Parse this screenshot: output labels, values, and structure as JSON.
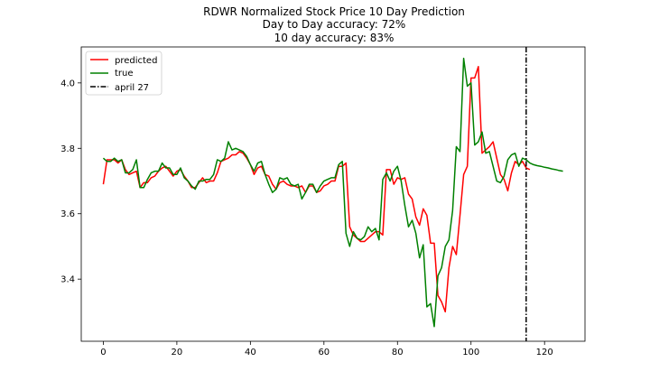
{
  "chart_data": {
    "type": "line",
    "title_lines": [
      "RDWR Normalized Stock Price 10 Day Prediction",
      "Day to Day accuracy: 72%",
      "10 day accuracy: 83%"
    ],
    "xlabel": "",
    "ylabel": "",
    "xlim": [
      -6,
      131
    ],
    "ylim": [
      3.21,
      4.11
    ],
    "xticks": [
      0,
      20,
      40,
      60,
      80,
      100,
      120
    ],
    "yticks": [
      3.4,
      3.6,
      3.8,
      4.0
    ],
    "ytick_labels": [
      "3.4",
      "3.6",
      "3.8",
      "4.0"
    ],
    "grid": false,
    "legend_position": "top-left",
    "vline": {
      "x": 115,
      "label": "april 27",
      "color": "#000000",
      "style": "dash-dot"
    },
    "series": [
      {
        "name": "predicted",
        "color": "#ff0000",
        "x_start": 0,
        "values": [
          3.69,
          3.765,
          3.765,
          3.765,
          3.755,
          3.765,
          3.735,
          3.72,
          3.725,
          3.73,
          3.68,
          3.695,
          3.695,
          3.71,
          3.715,
          3.73,
          3.74,
          3.745,
          3.73,
          3.715,
          3.73,
          3.735,
          3.715,
          3.7,
          3.68,
          3.68,
          3.695,
          3.71,
          3.695,
          3.7,
          3.7,
          3.725,
          3.76,
          3.765,
          3.77,
          3.78,
          3.78,
          3.79,
          3.785,
          3.77,
          3.75,
          3.72,
          3.74,
          3.745,
          3.72,
          3.715,
          3.69,
          3.675,
          3.695,
          3.7,
          3.69,
          3.685,
          3.685,
          3.68,
          3.685,
          3.665,
          3.685,
          3.685,
          3.665,
          3.67,
          3.685,
          3.69,
          3.7,
          3.7,
          3.745,
          3.745,
          3.755,
          3.56,
          3.535,
          3.525,
          3.515,
          3.515,
          3.525,
          3.535,
          3.545,
          3.545,
          3.535,
          3.735,
          3.735,
          3.69,
          3.71,
          3.705,
          3.71,
          3.66,
          3.645,
          3.59,
          3.565,
          3.615,
          3.595,
          3.51,
          3.51,
          3.35,
          3.33,
          3.3,
          3.435,
          3.5,
          3.475,
          3.595,
          3.72,
          3.745,
          4.015,
          4.015,
          4.05,
          3.785,
          3.795,
          3.805,
          3.82,
          3.77,
          3.72,
          3.705,
          3.67,
          3.725,
          3.76,
          3.75,
          3.76,
          3.74,
          3.735
        ]
      },
      {
        "name": "true",
        "color": "#008000",
        "x_start": 0,
        "values": [
          3.77,
          3.76,
          3.76,
          3.77,
          3.76,
          3.765,
          3.725,
          3.725,
          3.735,
          3.765,
          3.68,
          3.68,
          3.705,
          3.725,
          3.73,
          3.73,
          3.755,
          3.74,
          3.74,
          3.72,
          3.72,
          3.74,
          3.71,
          3.7,
          3.685,
          3.675,
          3.7,
          3.7,
          3.705,
          3.705,
          3.72,
          3.765,
          3.76,
          3.77,
          3.82,
          3.795,
          3.8,
          3.795,
          3.79,
          3.775,
          3.75,
          3.73,
          3.755,
          3.76,
          3.72,
          3.69,
          3.665,
          3.675,
          3.71,
          3.705,
          3.71,
          3.69,
          3.685,
          3.69,
          3.645,
          3.665,
          3.69,
          3.69,
          3.665,
          3.685,
          3.7,
          3.705,
          3.71,
          3.71,
          3.75,
          3.76,
          3.54,
          3.5,
          3.545,
          3.525,
          3.52,
          3.53,
          3.56,
          3.545,
          3.555,
          3.52,
          3.705,
          3.725,
          3.7,
          3.73,
          3.745,
          3.7,
          3.625,
          3.56,
          3.58,
          3.54,
          3.465,
          3.505,
          3.315,
          3.325,
          3.255,
          3.41,
          3.435,
          3.5,
          3.52,
          3.61,
          3.805,
          3.79,
          4.075,
          3.99,
          4.0,
          3.81,
          3.82,
          3.85,
          3.785,
          3.79,
          3.745,
          3.7,
          3.695,
          3.715,
          3.765,
          3.78,
          3.785,
          3.745,
          3.77,
          3.765,
          3.755,
          3.75,
          3.747,
          3.745,
          3.742,
          3.74,
          3.737,
          3.735,
          3.732,
          3.73
        ]
      }
    ]
  }
}
